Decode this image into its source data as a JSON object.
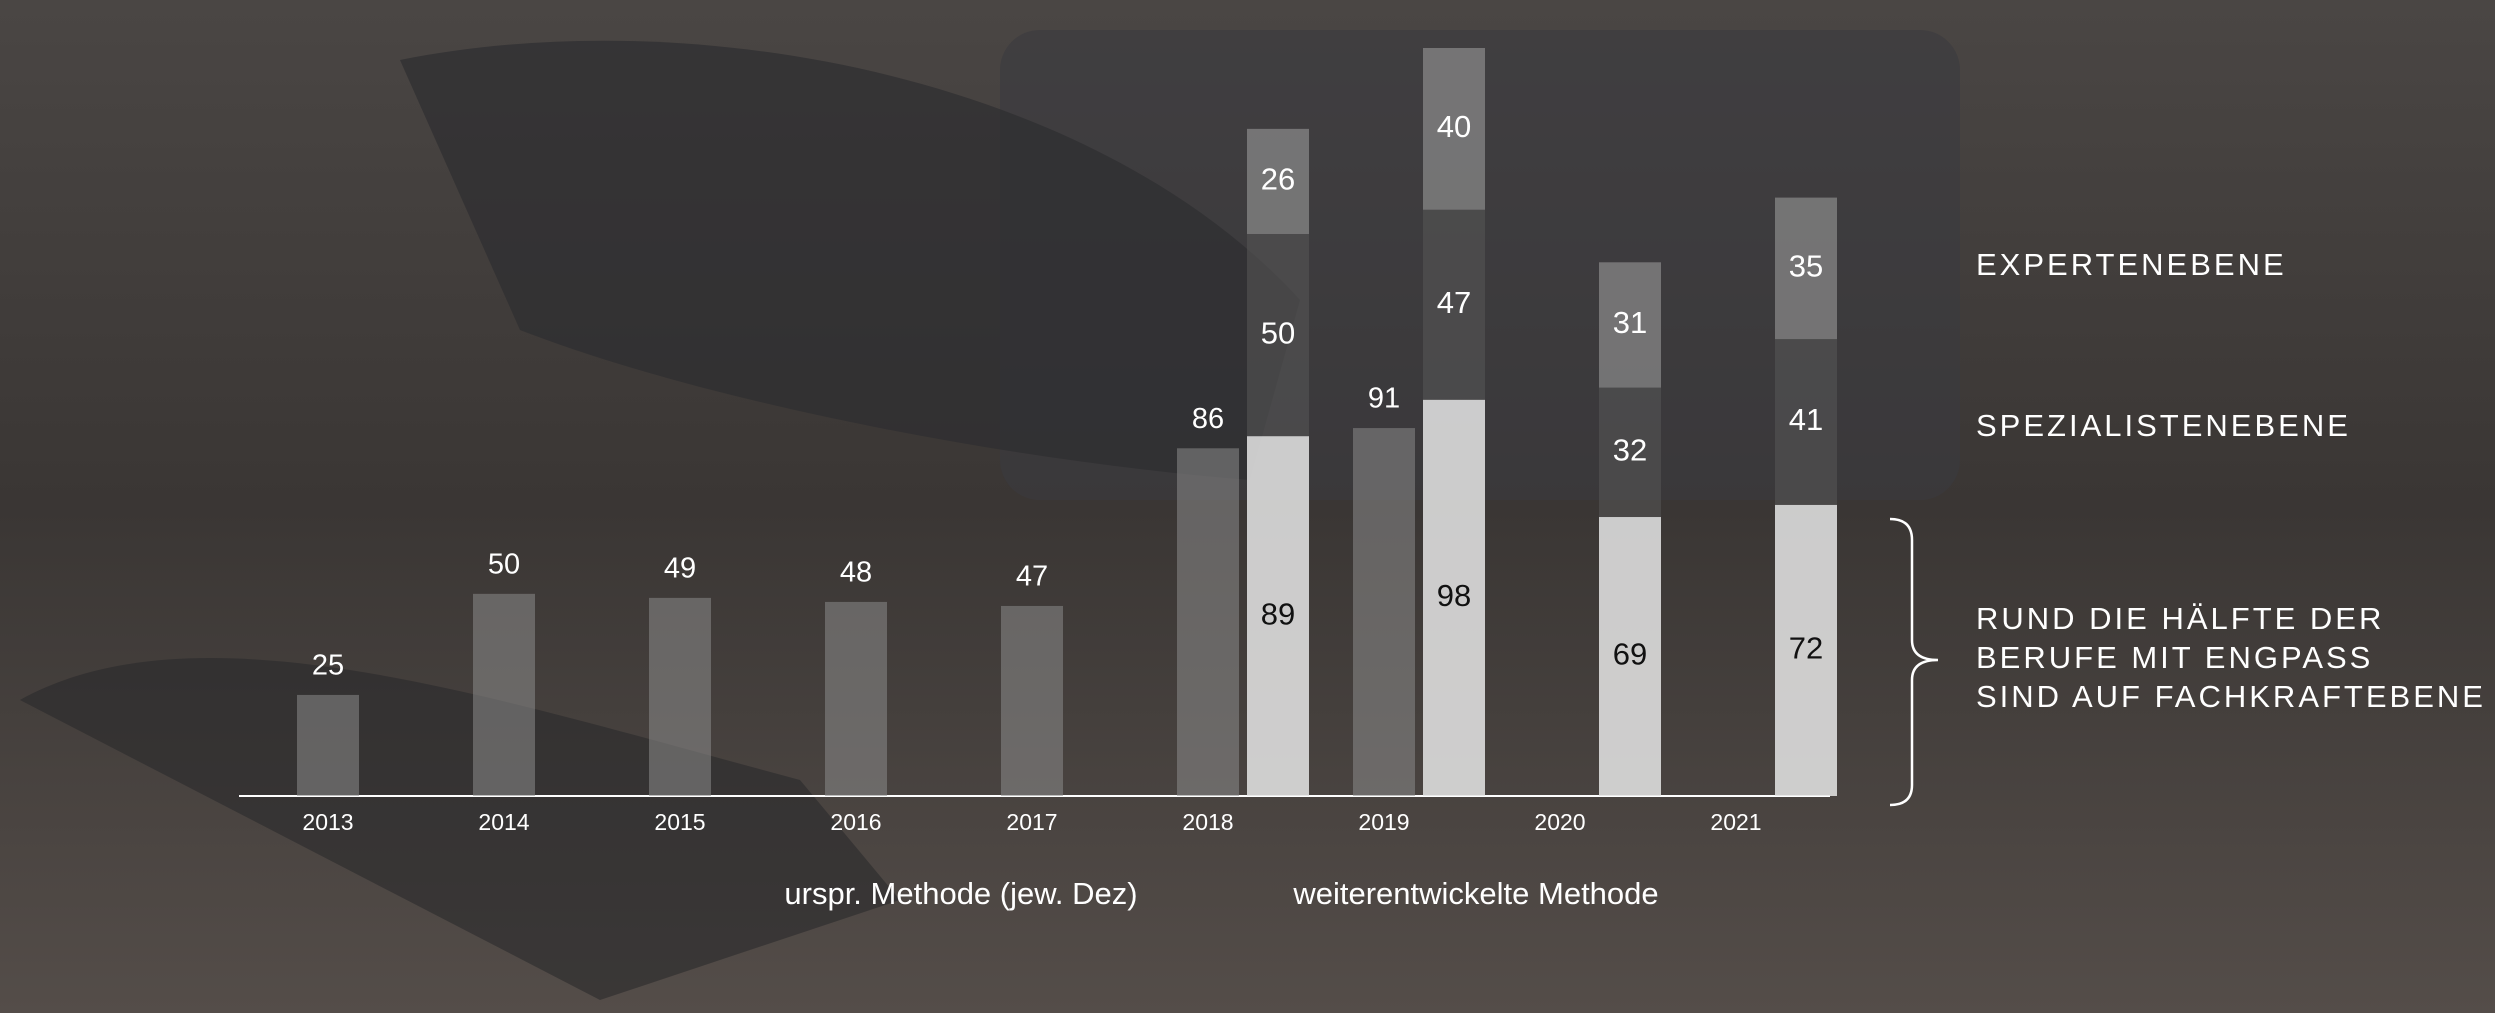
{
  "chart_data": {
    "type": "bar",
    "categories": [
      "2013",
      "2014",
      "2015",
      "2016",
      "2017",
      "2018",
      "2019",
      "2020",
      "2021"
    ],
    "series": [
      {
        "name": "urspr. Methode (jew. Dez)",
        "color": "#8a8a8a",
        "values": [
          25,
          50,
          49,
          48,
          47,
          86,
          91,
          null,
          null
        ]
      }
    ],
    "stacked": {
      "name": "weiterentwickelte Methode",
      "series": [
        {
          "color": "#e6e6e6",
          "values": [
            null,
            null,
            null,
            null,
            null,
            89,
            98,
            69,
            72
          ]
        },
        {
          "name": "SPEZIALISTENEBENE",
          "color": "#555555",
          "values": [
            null,
            null,
            null,
            null,
            null,
            50,
            47,
            32,
            41
          ]
        },
        {
          "name": "EXPERTENEBENE",
          "color": "#9a9a9a",
          "values": [
            null,
            null,
            null,
            null,
            null,
            26,
            40,
            31,
            35
          ]
        }
      ]
    },
    "annotation": [
      "RUND DIE HÄLFTE DER",
      "BERUFE MIT ENGPASS",
      "SIND AUF FACHKRAFTEBENE"
    ]
  }
}
